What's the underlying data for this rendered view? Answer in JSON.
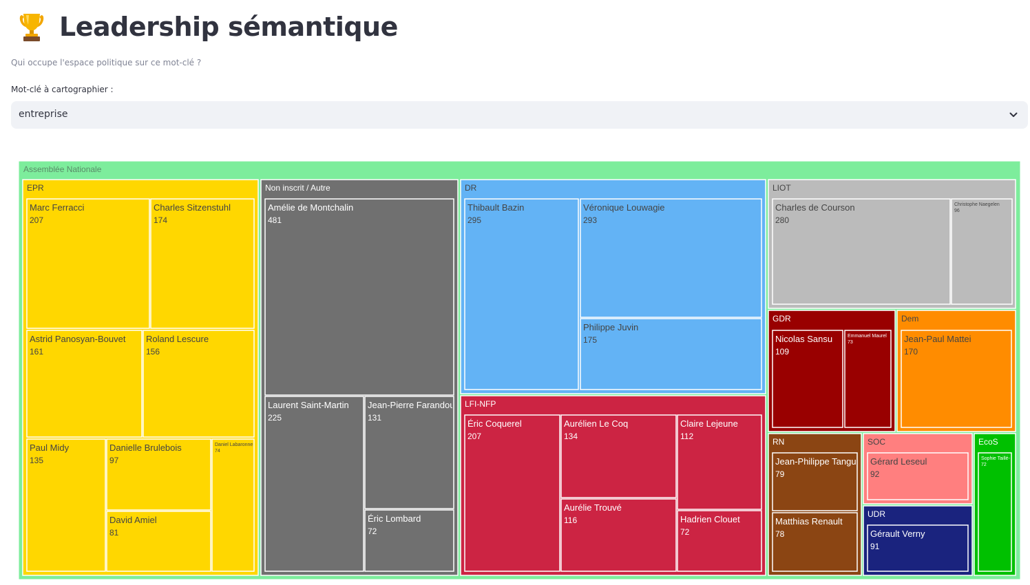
{
  "header": {
    "title": "Leadership sémantique",
    "icon": "trophy-icon",
    "subtitle": "Qui occupe l'espace politique sur ce mot-clé ?"
  },
  "keyword_select": {
    "label": "Mot-clé à cartographier :",
    "value": "entreprise",
    "icon": "chevron-down-icon"
  },
  "chart_data": {
    "type": "treemap",
    "root": "Assemblée Nationale",
    "root_color": "#7ded9c",
    "groups": [
      {
        "name": "EPR",
        "color": "#ffd700",
        "members": [
          {
            "name": "Marc Ferracci",
            "value": 207
          },
          {
            "name": "Charles Sitzenstuhl",
            "value": 174
          },
          {
            "name": "Astrid Panosyan-Bouvet",
            "value": 161
          },
          {
            "name": "Roland Lescure",
            "value": 156
          },
          {
            "name": "Paul Midy",
            "value": 135
          },
          {
            "name": "Danielle Brulebois",
            "value": 97
          },
          {
            "name": "David Amiel",
            "value": 81
          },
          {
            "name": "Daniel Labaronne",
            "value": 74
          }
        ]
      },
      {
        "name": "Non inscrit / Autre",
        "color": "#707070",
        "members": [
          {
            "name": "Amélie de Montchalin",
            "value": 481
          },
          {
            "name": "Laurent Saint-Martin",
            "value": 225
          },
          {
            "name": "Jean-Pierre Farandou",
            "value": 131
          },
          {
            "name": "Éric Lombard",
            "value": 72
          }
        ]
      },
      {
        "name": "DR",
        "color": "#63b3f5",
        "members": [
          {
            "name": "Thibault Bazin",
            "value": 295
          },
          {
            "name": "Véronique Louwagie",
            "value": 293
          },
          {
            "name": "Philippe Juvin",
            "value": 175
          }
        ]
      },
      {
        "name": "LFI-NFP",
        "color": "#cc2443",
        "members": [
          {
            "name": "Éric Coquerel",
            "value": 207
          },
          {
            "name": "Aurélien Le Coq",
            "value": 134
          },
          {
            "name": "Claire Lejeune",
            "value": 112
          },
          {
            "name": "Aurélie Trouvé",
            "value": 116
          },
          {
            "name": "Hadrien Clouet",
            "value": 72
          }
        ]
      },
      {
        "name": "LIOT",
        "color": "#bbbbbb",
        "members": [
          {
            "name": "Charles de Courson",
            "value": 280
          },
          {
            "name": "Christophe Naegelen",
            "value": 96
          }
        ]
      },
      {
        "name": "GDR",
        "color": "#990000",
        "members": [
          {
            "name": "Nicolas Sansu",
            "value": 109
          },
          {
            "name": "Emmanuel Maurel",
            "value": 73
          }
        ]
      },
      {
        "name": "Dem",
        "color": "#ff8c00",
        "members": [
          {
            "name": "Jean-Paul Mattei",
            "value": 170
          }
        ]
      },
      {
        "name": "RN",
        "color": "#8b4513",
        "members": [
          {
            "name": "Jean-Philippe Tanguy",
            "value": 79
          },
          {
            "name": "Matthias Renault",
            "value": 78
          }
        ]
      },
      {
        "name": "SOC",
        "color": "#ff7f7f",
        "members": [
          {
            "name": "Gérard Leseul",
            "value": 92
          }
        ]
      },
      {
        "name": "UDR",
        "color": "#1a237e",
        "members": [
          {
            "name": "Gérault Verny",
            "value": 91
          }
        ]
      },
      {
        "name": "EcoS",
        "color": "#00c000",
        "members": [
          {
            "name": "Sophie Taillé-Polian",
            "value": 72
          }
        ]
      }
    ]
  }
}
